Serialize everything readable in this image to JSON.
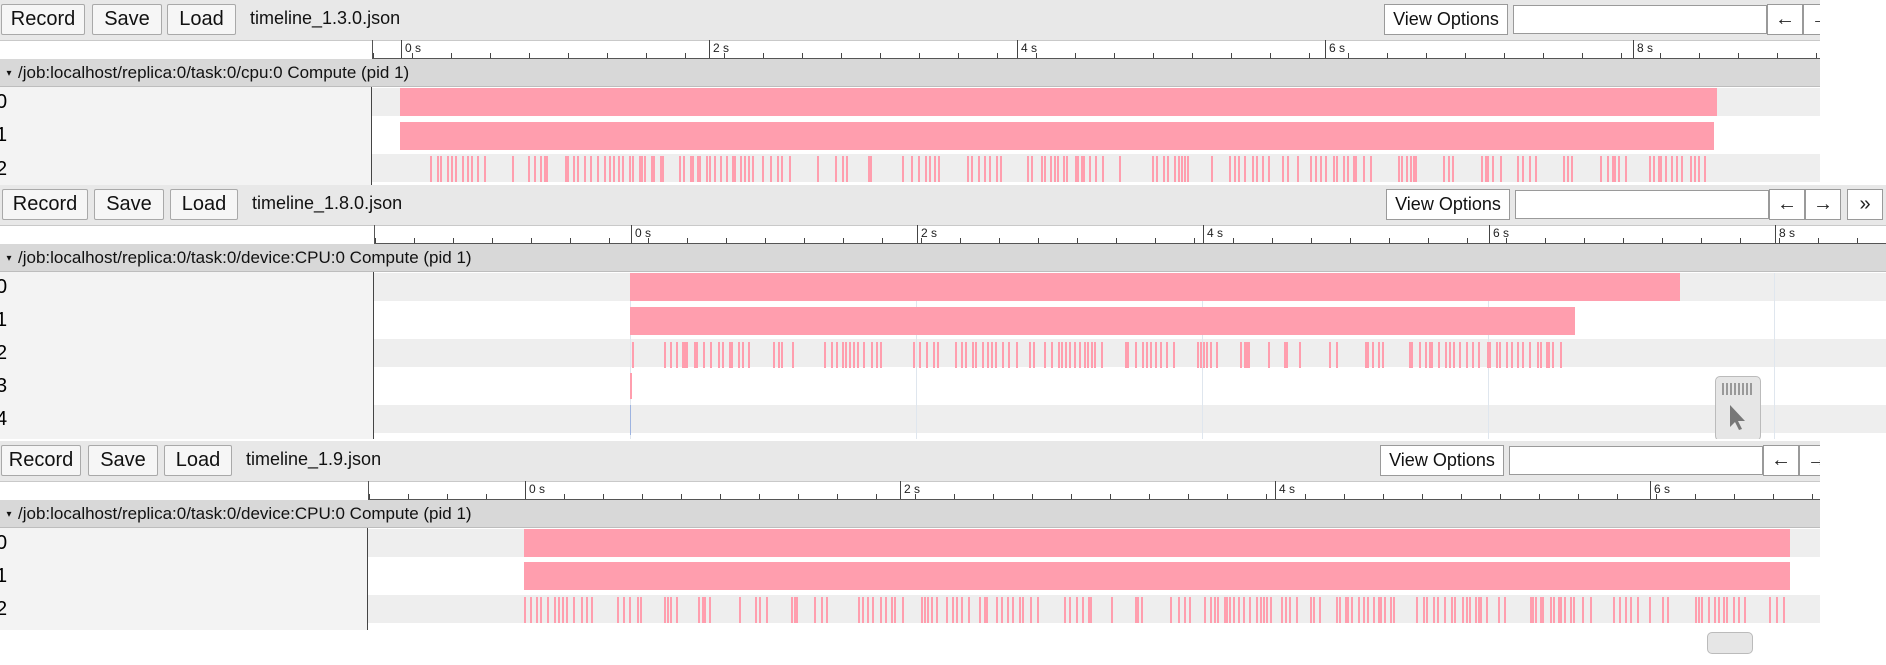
{
  "panels": [
    {
      "record_label": "Record",
      "save_label": "Save",
      "load_label": "Load",
      "filename": "timeline_1.3.0.json",
      "view_options_label": "View Options",
      "nav_left": "←",
      "nav_right": "→",
      "header": "/job:localhost/replica:0/task:0/cpu:0 Compute (pid 1)",
      "lanes": [
        "0",
        "1",
        "2"
      ],
      "tick_labels": [
        "0 s",
        "2 s",
        "4 s",
        "6 s",
        "8 s"
      ]
    },
    {
      "record_label": "Record",
      "save_label": "Save",
      "load_label": "Load",
      "filename": "timeline_1.8.0.json",
      "view_options_label": "View Options",
      "nav_left": "←",
      "nav_right": "→",
      "nav_more": "»",
      "header": "/job:localhost/replica:0/task:0/device:CPU:0 Compute (pid 1)",
      "lanes": [
        "0",
        "1",
        "2",
        "3",
        "4"
      ],
      "tick_labels": [
        "0 s",
        "2 s",
        "4 s",
        "6 s",
        "8 s"
      ]
    },
    {
      "record_label": "Record",
      "save_label": "Save",
      "load_label": "Load",
      "filename": "timeline_1.9.json",
      "view_options_label": "View Options",
      "nav_left": "←",
      "nav_right": "→",
      "header": "/job:localhost/replica:0/task:0/device:CPU:0 Compute (pid 1)",
      "lanes": [
        "0",
        "1",
        "2"
      ],
      "tick_labels": [
        "0 s",
        "2 s",
        "4 s",
        "6 s"
      ]
    }
  ],
  "colors": {
    "slice": "#ff9eae",
    "toolbar_bg": "#e8e8e8",
    "header_bg": "#d8d8d8",
    "lane_alt": "#eeeeee"
  },
  "icons": {
    "collapse": "triangle-down-icon",
    "cursor": "pointer-arrow-icon",
    "grip": "grip-icon"
  }
}
